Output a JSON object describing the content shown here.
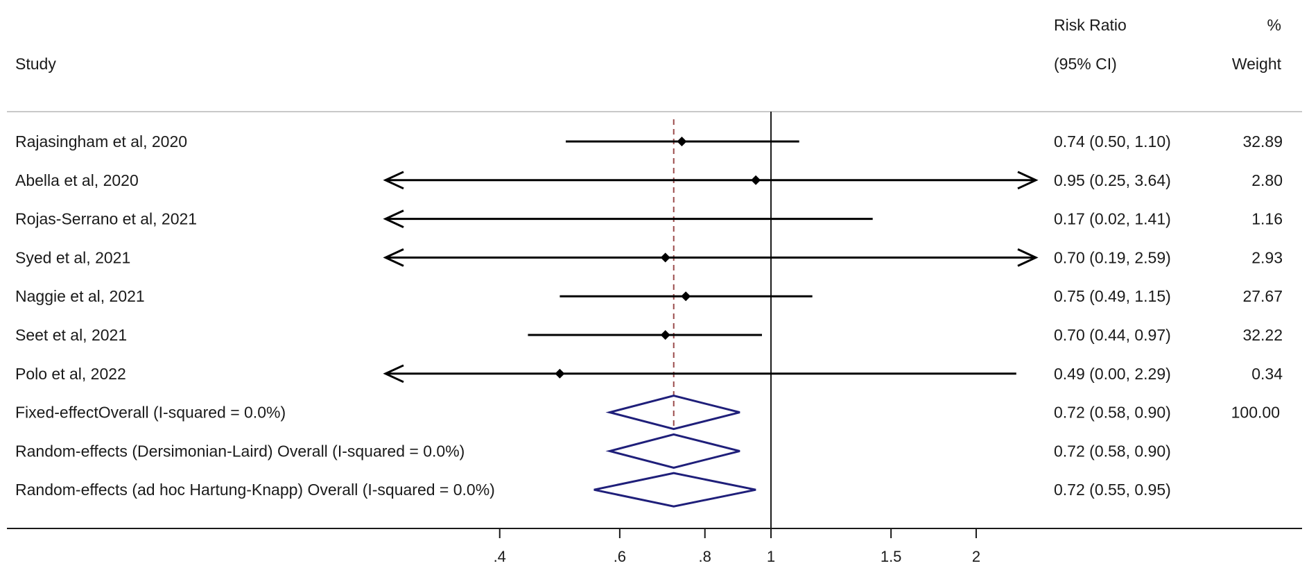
{
  "header": {
    "study_label": "Study",
    "effect_label_line1": "Risk Ratio",
    "effect_label_line2": "(95% CI)",
    "weight_label_line1": "%",
    "weight_label_line2": "Weight"
  },
  "chart_data": {
    "type": "forest",
    "measure": "Risk Ratio",
    "x_scale": "log",
    "xlim": [
      0.4,
      2.5
    ],
    "x_ticks": [
      0.4,
      0.6,
      0.8,
      1,
      1.5,
      2
    ],
    "x_tick_labels": [
      ".4",
      ".6",
      ".8",
      "1",
      "1.5",
      "2"
    ],
    "null_line": 1,
    "pooled_reference_line": 0.72,
    "colors": {
      "study": "#000000",
      "pooled": "#1f1f7a",
      "reference": "#9a4a4a"
    },
    "studies": [
      {
        "label": "Rajasingham et al, 2020",
        "rr": 0.74,
        "lo": 0.5,
        "hi": 1.1,
        "ci_text": "0.74 (0.50, 1.10)",
        "weight": "32.89"
      },
      {
        "label": "Abella et al, 2020",
        "rr": 0.95,
        "lo": 0.25,
        "hi": 3.64,
        "ci_text": "0.95 (0.25, 3.64)",
        "weight": "2.80"
      },
      {
        "label": "Rojas-Serrano et al, 2021",
        "rr": 0.17,
        "lo": 0.02,
        "hi": 1.41,
        "ci_text": "0.17 (0.02, 1.41)",
        "weight": "1.16"
      },
      {
        "label": "Syed et al, 2021",
        "rr": 0.7,
        "lo": 0.19,
        "hi": 2.59,
        "ci_text": "0.70 (0.19, 2.59)",
        "weight": "2.93"
      },
      {
        "label": "Naggie et al, 2021",
        "rr": 0.75,
        "lo": 0.49,
        "hi": 1.15,
        "ci_text": "0.75 (0.49, 1.15)",
        "weight": "27.67"
      },
      {
        "label": "Seet et al, 2021",
        "rr": 0.7,
        "lo": 0.44,
        "hi": 0.97,
        "ci_text": "0.70 (0.44, 0.97)",
        "weight": "32.22"
      },
      {
        "label": "Polo et al, 2022",
        "rr": 0.49,
        "lo": 0.0,
        "hi": 2.29,
        "ci_text": "0.49 (0.00, 2.29)",
        "weight": "0.34"
      }
    ],
    "pooled": [
      {
        "label": "Fixed-effectOverall (I-squared = 0.0%)",
        "rr": 0.72,
        "lo": 0.58,
        "hi": 0.9,
        "ci_text": "0.72 (0.58, 0.90)",
        "weight": "100.00"
      },
      {
        "label": "Random-effects (Dersimonian-Laird) Overall (I-squared = 0.0%)",
        "rr": 0.72,
        "lo": 0.58,
        "hi": 0.9,
        "ci_text": "0.72 (0.58, 0.90)",
        "weight": ""
      },
      {
        "label": "Random-effects (ad hoc Hartung-Knapp) Overall (I-squared = 0.0%)",
        "rr": 0.72,
        "lo": 0.55,
        "hi": 0.95,
        "ci_text": "0.72 (0.55, 0.95)",
        "weight": ""
      }
    ]
  }
}
